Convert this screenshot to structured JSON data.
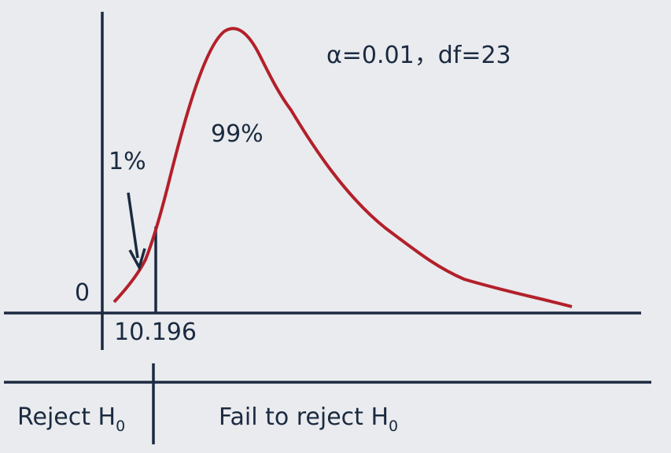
{
  "annotation": "α=0.01，df=23",
  "region_labels": {
    "acceptance_area": "99%",
    "rejection_area": "1%"
  },
  "axis_labels": {
    "origin": "0",
    "critical_value": "10.196"
  },
  "decision": {
    "reject": {
      "text": "Reject H",
      "subscript": "0"
    },
    "fail_to_reject": {
      "text": "Fail to reject H",
      "subscript": "0"
    }
  }
}
